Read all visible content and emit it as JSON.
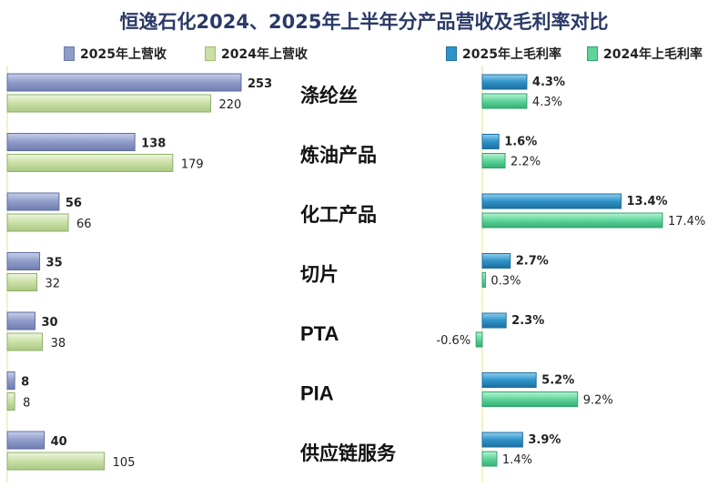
{
  "title": "恒逸石化2024、2025年上半年分产品营收及毛利率对比",
  "legend": {
    "rev2025": "2025年上营收",
    "rev2024": "2024年上营收",
    "gm2025": "2025年上毛利率",
    "gm2024": "2024年上毛利率"
  },
  "colors": {
    "rev2025": "#8f9cc8",
    "rev2024": "#c9dfa6",
    "gm2025": "#2f93c9",
    "gm2024": "#5fd49a"
  },
  "chart_data": {
    "type": "bar",
    "title": "恒逸石化2024、2025年上半年分产品营收及毛利率对比",
    "categories": [
      "涤纶丝",
      "炼油产品",
      "化工产品",
      "切片",
      "PTA",
      "PIA",
      "供应链服务"
    ],
    "revenue": {
      "series": [
        {
          "name": "2025年上营收",
          "values": [
            253,
            138,
            56,
            35,
            30,
            8,
            40
          ]
        },
        {
          "name": "2024年上营收",
          "values": [
            220,
            179,
            66,
            32,
            38,
            8,
            105
          ]
        }
      ]
    },
    "gross_margin": {
      "series": [
        {
          "name": "2025年上毛利率",
          "values": [
            4.3,
            1.6,
            13.4,
            2.7,
            2.3,
            5.2,
            3.9
          ],
          "labels": [
            "4.3%",
            "1.6%",
            "13.4%",
            "2.7%",
            "2.3%",
            "5.2%",
            "3.9%"
          ]
        },
        {
          "name": "2024年上毛利率",
          "values": [
            4.3,
            2.2,
            17.4,
            0.3,
            -0.6,
            9.2,
            1.4
          ],
          "labels": [
            "4.3%",
            "2.2%",
            "17.4%",
            "0.3%",
            "-0.6%",
            "9.2%",
            "1.4%"
          ]
        }
      ]
    },
    "legend_position": "top",
    "grid": false
  }
}
